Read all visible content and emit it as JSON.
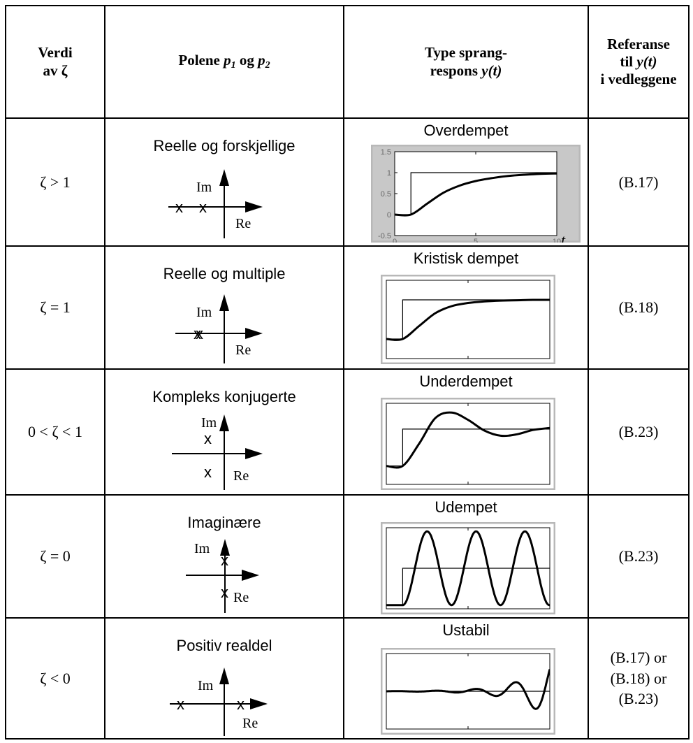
{
  "header": {
    "col1_line1": "Verdi",
    "col1_line2": "av ",
    "col1_zeta": "ζ",
    "col2_text1": "Polene ",
    "col2_p1": "p",
    "col2_sub1": "1",
    "col2_og": " og ",
    "col2_p2": "p",
    "col2_sub2": "2",
    "col3_line1": "Type sprang-",
    "col3_line2": "respons ",
    "col3_y": "y(t)",
    "col4_line1": "Referanse",
    "col4_line2a": "til ",
    "col4_y": "y(t)",
    "col4_line3": "i vedleggene"
  },
  "pole_axes": {
    "im_label": "Im",
    "re_label": "Re",
    "pole_marker": "x"
  },
  "rows": [
    {
      "zeta": "ζ > 1",
      "poles_title": "Reelle og forskjellige",
      "response_title": "Overdempet",
      "reference": "(B.17)"
    },
    {
      "zeta": "ζ = 1",
      "poles_title": "Reelle og multiple",
      "response_title": "Kristisk dempet",
      "reference": "(B.18)"
    },
    {
      "zeta": "0 < ζ < 1",
      "poles_title": "Kompleks konjugerte",
      "response_title": "Underdempet",
      "reference": "(B.23)"
    },
    {
      "zeta": "ζ = 0",
      "poles_title": "Imaginære",
      "response_title": "Udempet",
      "reference": "(B.23)"
    },
    {
      "zeta": "ζ < 0",
      "poles_title": "Positiv realdel",
      "response_title": "Ustabil",
      "reference_lines": [
        "(B.17) or",
        "(B.18) or",
        "(B.23)"
      ]
    }
  ],
  "chart_data": [
    {
      "type": "line",
      "title": "Overdempet",
      "xlabel": "t",
      "xlim": [
        0,
        10
      ],
      "ylim": [
        -0.5,
        1.5
      ],
      "x_ticks": [
        "0",
        "5",
        "10"
      ],
      "y_ticks": [
        "1.5",
        "1",
        "0.5",
        "0",
        "-0.5"
      ],
      "series": [
        {
          "x": [
            0,
            1,
            1,
            10
          ],
          "values": [
            0,
            0,
            1,
            1
          ]
        },
        {
          "x": [
            0,
            1,
            2,
            3,
            4,
            5,
            6,
            7,
            8,
            9,
            10
          ],
          "values": [
            0,
            0,
            0.26,
            0.52,
            0.69,
            0.8,
            0.87,
            0.92,
            0.95,
            0.97,
            0.98
          ]
        }
      ]
    },
    {
      "type": "line",
      "title": "Kristisk dempet",
      "xlim": [
        0,
        10
      ],
      "ylim": [
        -0.5,
        1.5
      ],
      "series": [
        {
          "x": [
            0,
            1,
            1,
            10
          ],
          "values": [
            0,
            0,
            1,
            1
          ]
        },
        {
          "x": [
            0,
            1,
            2,
            3,
            4,
            5,
            6,
            7,
            8,
            9,
            10
          ],
          "values": [
            0,
            0,
            0.33,
            0.66,
            0.84,
            0.92,
            0.96,
            0.98,
            0.99,
            1.0,
            1.0
          ]
        }
      ]
    },
    {
      "type": "line",
      "title": "Underdempet",
      "xlim": [
        0,
        10
      ],
      "ylim": [
        -0.5,
        1.7
      ],
      "series": [
        {
          "x": [
            0,
            1,
            1,
            10
          ],
          "values": [
            0,
            0,
            1,
            1
          ]
        },
        {
          "x": [
            0,
            1,
            2,
            3,
            4,
            5,
            6,
            7,
            8,
            9,
            10
          ],
          "values": [
            0,
            0,
            0.6,
            1.3,
            1.45,
            1.25,
            0.96,
            0.82,
            0.86,
            0.98,
            1.03
          ]
        }
      ]
    },
    {
      "type": "line",
      "title": "Udempet",
      "xlim": [
        0,
        10
      ],
      "ylim": [
        -0.1,
        2.1
      ],
      "series": [
        {
          "x": [
            0,
            1,
            1,
            10
          ],
          "values": [
            0,
            0,
            1,
            1
          ]
        },
        {
          "function": "1 - cos(2.1*(t-1)) for t>=1, else 0"
        }
      ]
    },
    {
      "type": "line",
      "title": "Ustabil",
      "xlim": [
        0,
        10
      ],
      "ylim": [
        -1.6,
        1.6
      ],
      "series": [
        {
          "x": [
            0,
            10
          ],
          "values": [
            0,
            0
          ]
        },
        {
          "function": "0.005*exp(0.55*t)*sin(2.6*t)"
        }
      ]
    }
  ]
}
